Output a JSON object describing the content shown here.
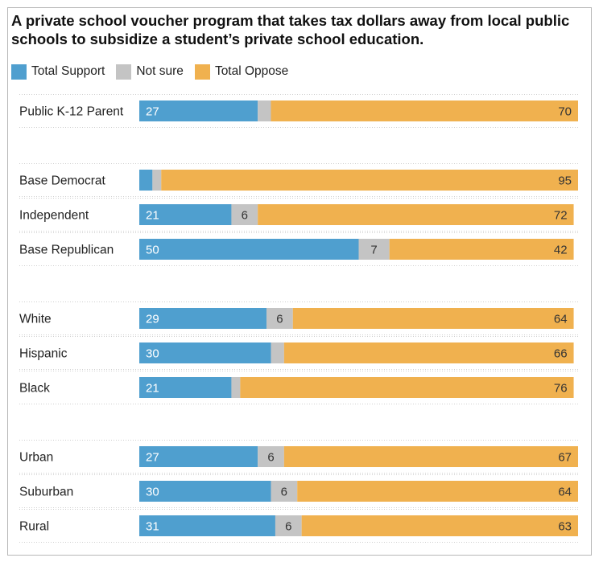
{
  "title": "A private school voucher program that takes tax dollars away from local public schools to subsidize a student’s private school education.",
  "colors": {
    "support": "#4f9fcf",
    "not_sure": "#c4c4c4",
    "oppose": "#f0b14f"
  },
  "legend": [
    {
      "label": "Total Support",
      "color": "#4f9fcf"
    },
    {
      "label": "Not sure",
      "color": "#c4c4c4"
    },
    {
      "label": "Total Oppose",
      "color": "#f0b14f"
    }
  ],
  "chart_data": {
    "type": "bar",
    "orientation": "horizontal",
    "stacked": true,
    "title": "A private school voucher program that takes tax dollars away from local public schools to subsidize a student’s private school education.",
    "legend_position": "top-left",
    "xlim": [
      0,
      100
    ],
    "categories": [
      "Public K-12 Parent",
      "Base Democrat",
      "Independent",
      "Base Republican",
      "White",
      "Hispanic",
      "Black",
      "Urban",
      "Suburban",
      "Rural"
    ],
    "groups": [
      [
        0
      ],
      [
        1,
        2,
        3
      ],
      [
        4,
        5,
        6
      ],
      [
        7,
        8,
        9
      ]
    ],
    "series": [
      {
        "name": "Total Support",
        "values": [
          27,
          3,
          21,
          50,
          29,
          30,
          21,
          27,
          30,
          31
        ],
        "labels": [
          "27",
          "",
          "21",
          "50",
          "29",
          "30",
          "21",
          "27",
          "30",
          "31"
        ]
      },
      {
        "name": "Not sure",
        "values": [
          3,
          2,
          6,
          7,
          6,
          3,
          2,
          6,
          6,
          6
        ],
        "labels": [
          "",
          "",
          "6",
          "7",
          "6",
          "",
          "",
          "6",
          "6",
          "6"
        ]
      },
      {
        "name": "Total Oppose",
        "values": [
          70,
          95,
          72,
          42,
          64,
          66,
          76,
          67,
          64,
          63
        ],
        "labels": [
          "70",
          "95",
          "72",
          "42",
          "64",
          "66",
          "76",
          "67",
          "64",
          "63"
        ]
      }
    ]
  }
}
